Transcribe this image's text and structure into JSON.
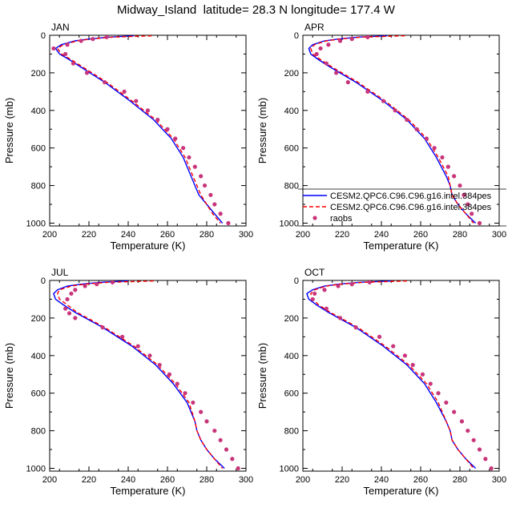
{
  "title": "Midway_Island  latitude= 28.3 N longitude= 177.4 W",
  "colors": {
    "model1": "#0000ff",
    "model2": "#ff0000",
    "obs": "#c8357a",
    "axis": "#000000",
    "background": "#ffffff"
  },
  "legend": {
    "entries": [
      {
        "label": "CESM2.QPC6.C96.C96.g16.intel.384pes",
        "style": "solid",
        "color": "#0000ff"
      },
      {
        "label": "CESM2.QPC6.C96.C96.g16.intel.384pes",
        "style": "dashed",
        "color": "#ff0000"
      },
      {
        "label": "raobs",
        "style": "dots",
        "color": "#c8357a"
      }
    ],
    "panel": "APR",
    "placement": "lower-right"
  },
  "chart_data": [
    {
      "type": "line",
      "panel_label": "JAN",
      "xlabel": "Temperature (K)",
      "ylabel": "Pressure (mb)",
      "xlim": [
        200,
        300
      ],
      "ylim": [
        1015,
        0
      ],
      "xticks": [
        200,
        220,
        240,
        260,
        280,
        300
      ],
      "yticks": [
        0,
        200,
        400,
        600,
        800,
        1000
      ],
      "series": [
        {
          "name": "CESM2.QPC6.C96.C96.g16.intel.384pes",
          "style": "solid",
          "pressure": [
            3,
            10,
            20,
            30,
            50,
            70,
            100,
            130,
            170,
            250,
            350,
            450,
            550,
            650,
            750,
            800,
            850,
            900,
            950,
            1000
          ],
          "temperature": [
            243,
            230,
            220,
            213,
            206,
            203,
            205,
            210,
            216,
            228,
            241,
            253,
            262,
            268,
            272,
            274,
            276,
            280,
            284,
            288
          ]
        },
        {
          "name": "CESM2.QPC6.C96.C96.g16.intel.384pes",
          "style": "dashed",
          "pressure": [
            3,
            10,
            20,
            30,
            50,
            70,
            100,
            130,
            170,
            250,
            350,
            450,
            550,
            650,
            750,
            800,
            850,
            900,
            950,
            1000
          ],
          "temperature": [
            252,
            232,
            221,
            214,
            207,
            204,
            206,
            211,
            217,
            229,
            242,
            254,
            263,
            269,
            273,
            275,
            277,
            280,
            283,
            287
          ]
        },
        {
          "name": "raobs",
          "style": "dots",
          "pressure": [
            10,
            20,
            30,
            50,
            70,
            100,
            150,
            200,
            250,
            300,
            350,
            400,
            450,
            500,
            550,
            600,
            650,
            700,
            750,
            800,
            850,
            900,
            950,
            1000
          ],
          "temperature": [
            229,
            222,
            216,
            209,
            202,
            208,
            212,
            219,
            228,
            238,
            244,
            250,
            255,
            260,
            264,
            268,
            271,
            274,
            277,
            279,
            282,
            284,
            287,
            291
          ]
        }
      ]
    },
    {
      "type": "line",
      "panel_label": "APR",
      "xlabel": "Temperature (K)",
      "ylabel": "Pressure (mb)",
      "xlim": [
        200,
        300
      ],
      "ylim": [
        1015,
        0
      ],
      "xticks": [
        200,
        220,
        240,
        260,
        280,
        300
      ],
      "yticks": [
        0,
        200,
        400,
        600,
        800,
        1000
      ],
      "series": [
        {
          "name": "CESM2.QPC6.C96.C96.g16.intel.384pes",
          "style": "solid",
          "pressure": [
            3,
            10,
            20,
            30,
            50,
            70,
            100,
            130,
            170,
            250,
            350,
            450,
            550,
            650,
            750,
            800,
            850,
            900,
            950,
            1000
          ],
          "temperature": [
            243,
            228,
            218,
            211,
            205,
            203,
            204,
            208,
            214,
            227,
            241,
            253,
            262,
            268,
            273,
            275,
            276,
            279,
            283,
            288
          ]
        },
        {
          "name": "CESM2.QPC6.C96.C96.g16.intel.384pes",
          "style": "dashed",
          "pressure": [
            3,
            10,
            20,
            30,
            50,
            70,
            100,
            130,
            170,
            250,
            350,
            450,
            550,
            650,
            750,
            800,
            850,
            900,
            950,
            1000
          ],
          "temperature": [
            252,
            230,
            219,
            212,
            206,
            204,
            205,
            209,
            215,
            228,
            242,
            254,
            263,
            269,
            274,
            275,
            276,
            279,
            283,
            287
          ]
        },
        {
          "name": "raobs",
          "style": "dots",
          "pressure": [
            10,
            20,
            30,
            50,
            70,
            100,
            150,
            200,
            250,
            300,
            350,
            400,
            450,
            500,
            550,
            600,
            650,
            700,
            750,
            800,
            850,
            900,
            950,
            1000
          ],
          "temperature": [
            233,
            225,
            219,
            213,
            209,
            207,
            212,
            217,
            223,
            233,
            241,
            247,
            253,
            258,
            263,
            267,
            271,
            274,
            277,
            280,
            282,
            284,
            286,
            290
          ]
        }
      ]
    },
    {
      "type": "line",
      "panel_label": "JUL",
      "xlabel": "Temperature (K)",
      "ylabel": "Pressure (mb)",
      "xlim": [
        200,
        300
      ],
      "ylim": [
        1015,
        0
      ],
      "xticks": [
        200,
        220,
        240,
        260,
        280,
        300
      ],
      "yticks": [
        0,
        200,
        400,
        600,
        800,
        1000
      ],
      "series": [
        {
          "name": "CESM2.QPC6.C96.C96.g16.intel.384pes",
          "style": "solid",
          "pressure": [
            3,
            10,
            20,
            30,
            50,
            70,
            100,
            130,
            170,
            250,
            350,
            450,
            550,
            650,
            750,
            800,
            850,
            900,
            950,
            1000
          ],
          "temperature": [
            240,
            226,
            216,
            209,
            204,
            202,
            203,
            207,
            213,
            227,
            242,
            254,
            263,
            270,
            274,
            275,
            277,
            280,
            284,
            289
          ]
        },
        {
          "name": "CESM2.QPC6.C96.C96.g16.intel.384pes",
          "style": "dashed",
          "pressure": [
            3,
            10,
            20,
            30,
            50,
            70,
            100,
            130,
            170,
            250,
            350,
            450,
            550,
            650,
            750,
            800,
            850,
            900,
            950,
            1000
          ],
          "temperature": [
            253,
            230,
            218,
            211,
            205,
            204,
            205,
            209,
            214,
            228,
            243,
            255,
            264,
            271,
            274,
            275,
            277,
            280,
            284,
            288
          ]
        },
        {
          "name": "raobs",
          "style": "dots",
          "pressure": [
            10,
            20,
            30,
            50,
            70,
            100,
            150,
            175,
            200,
            250,
            300,
            350,
            400,
            450,
            500,
            550,
            600,
            650,
            700,
            750,
            800,
            850,
            900,
            950,
            1000
          ],
          "temperature": [
            232,
            224,
            218,
            213,
            211,
            209,
            208,
            210,
            213,
            227,
            237,
            245,
            251,
            256,
            261,
            265,
            269,
            273,
            277,
            280,
            284,
            287,
            290,
            293,
            296
          ]
        }
      ]
    },
    {
      "type": "line",
      "panel_label": "OCT",
      "xlabel": "Temperature (K)",
      "ylabel": "Pressure (mb)",
      "xlim": [
        200,
        300
      ],
      "ylim": [
        1015,
        0
      ],
      "xticks": [
        200,
        220,
        240,
        260,
        280,
        300
      ],
      "yticks": [
        0,
        200,
        400,
        600,
        800,
        1000
      ],
      "series": [
        {
          "name": "CESM2.QPC6.C96.C96.g16.intel.384pes",
          "style": "solid",
          "pressure": [
            3,
            10,
            20,
            30,
            50,
            70,
            100,
            130,
            170,
            250,
            350,
            450,
            550,
            650,
            750,
            800,
            850,
            900,
            950,
            1000
          ],
          "temperature": [
            245,
            229,
            218,
            211,
            205,
            202,
            203,
            207,
            213,
            227,
            241,
            253,
            262,
            268,
            273,
            275,
            276,
            279,
            283,
            288
          ]
        },
        {
          "name": "CESM2.QPC6.C96.C96.g16.intel.384pes",
          "style": "dashed",
          "pressure": [
            3,
            10,
            20,
            30,
            50,
            70,
            100,
            130,
            170,
            250,
            350,
            450,
            550,
            650,
            750,
            800,
            850,
            900,
            950,
            1000
          ],
          "temperature": [
            253,
            231,
            219,
            212,
            206,
            204,
            205,
            208,
            214,
            228,
            242,
            254,
            263,
            269,
            273,
            275,
            276,
            279,
            283,
            287
          ]
        },
        {
          "name": "raobs",
          "style": "dots",
          "pressure": [
            10,
            20,
            30,
            50,
            70,
            100,
            150,
            200,
            250,
            300,
            350,
            400,
            450,
            500,
            550,
            600,
            650,
            700,
            750,
            800,
            850,
            900,
            950,
            1000
          ],
          "temperature": [
            234,
            225,
            218,
            211,
            206,
            205,
            212,
            219,
            227,
            239,
            246,
            252,
            256,
            261,
            265,
            269,
            273,
            277,
            281,
            284,
            287,
            290,
            293,
            296
          ]
        }
      ]
    }
  ]
}
